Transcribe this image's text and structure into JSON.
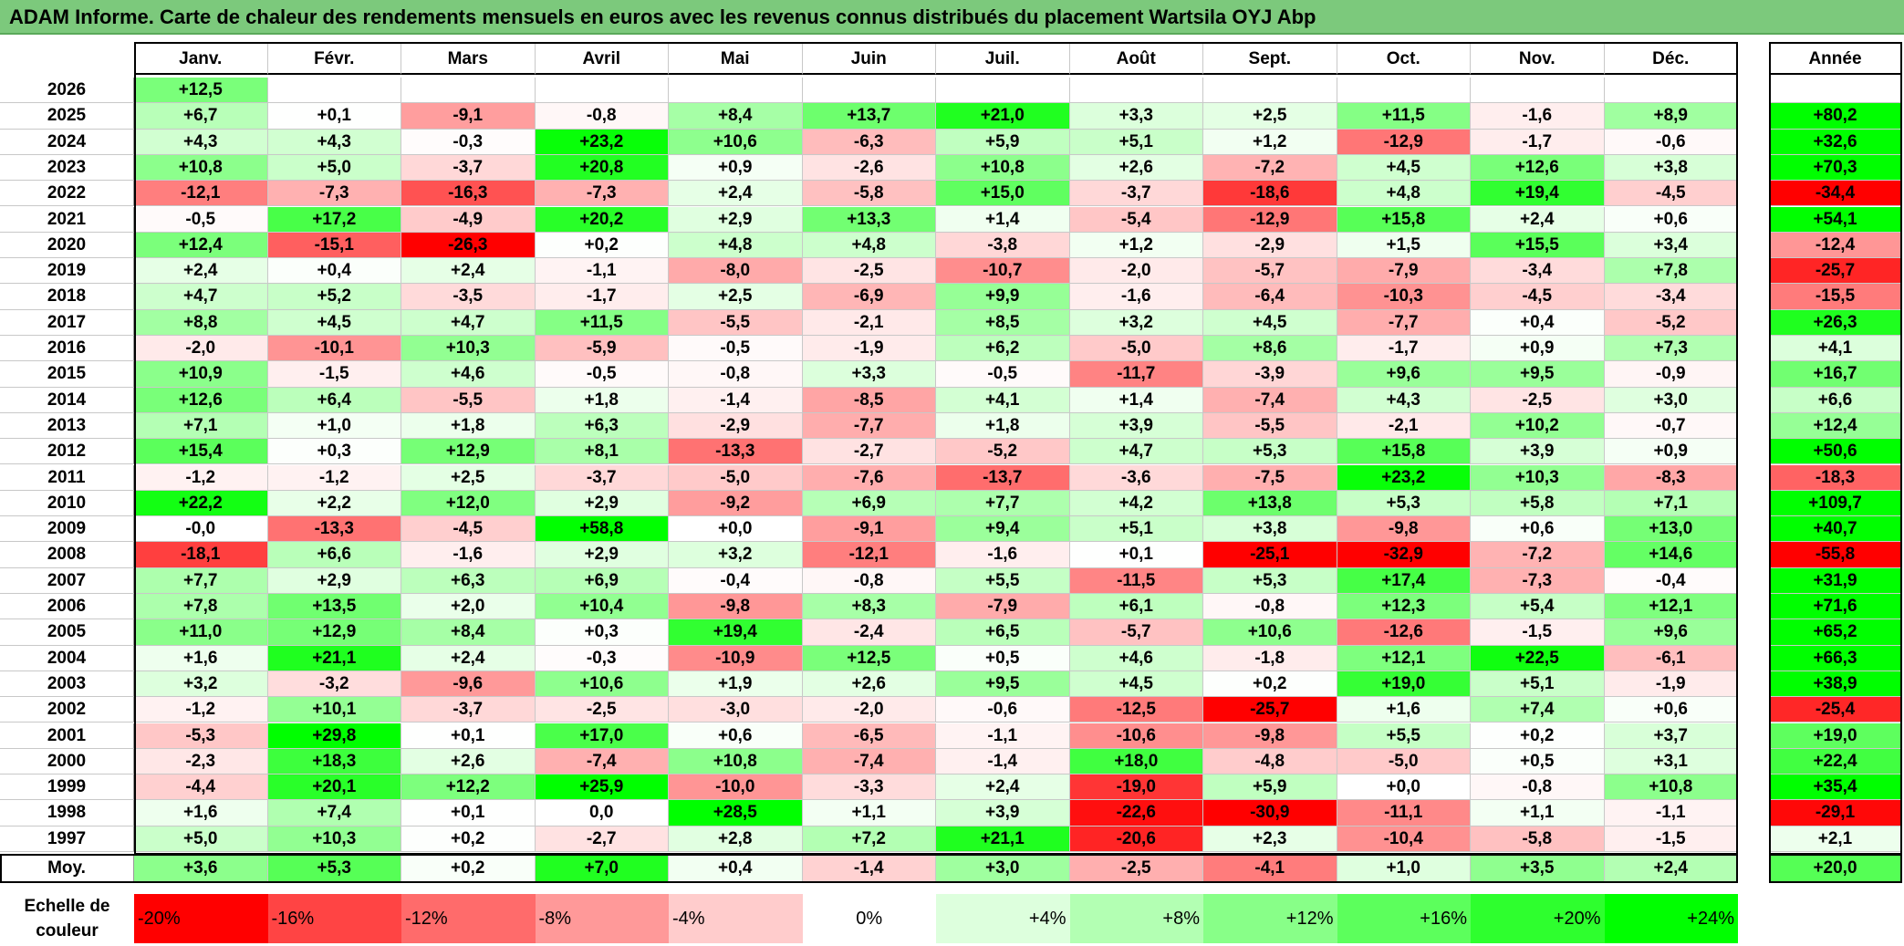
{
  "title": "ADAM Informe. Carte de chaleur des rendements mensuels en euros avec les revenus connus distribués du placement Wartsila OYJ Abp",
  "chart_data": {
    "type": "heatmap",
    "months": [
      "Janv.",
      "Févr.",
      "Mars",
      "Avril",
      "Mai",
      "Juin",
      "Juil.",
      "Août",
      "Sept.",
      "Oct.",
      "Nov.",
      "Déc."
    ],
    "annual_header": "Année",
    "rows": [
      {
        "year": "2026",
        "values": [
          "+12,5",
          "",
          "",
          "",
          "",
          "",
          "",
          "",
          "",
          "",
          "",
          ""
        ],
        "annual": ""
      },
      {
        "year": "2025",
        "values": [
          "+6,7",
          "+0,1",
          "-9,1",
          "-0,8",
          "+8,4",
          "+13,7",
          "+21,0",
          "+3,3",
          "+2,5",
          "+11,5",
          "-1,6",
          "+8,9"
        ],
        "annual": "+80,2"
      },
      {
        "year": "2024",
        "values": [
          "+4,3",
          "+4,3",
          "-0,3",
          "+23,2",
          "+10,6",
          "-6,3",
          "+5,9",
          "+5,1",
          "+1,2",
          "-12,9",
          "-1,7",
          "-0,6"
        ],
        "annual": "+32,6"
      },
      {
        "year": "2023",
        "values": [
          "+10,8",
          "+5,0",
          "-3,7",
          "+20,8",
          "+0,9",
          "-2,6",
          "+10,8",
          "+2,6",
          "-7,2",
          "+4,5",
          "+12,6",
          "+3,8"
        ],
        "annual": "+70,3"
      },
      {
        "year": "2022",
        "values": [
          "-12,1",
          "-7,3",
          "-16,3",
          "-7,3",
          "+2,4",
          "-5,8",
          "+15,0",
          "-3,7",
          "-18,6",
          "+4,8",
          "+19,4",
          "-4,5"
        ],
        "annual": "-34,4"
      },
      {
        "year": "2021",
        "values": [
          "-0,5",
          "+17,2",
          "-4,9",
          "+20,2",
          "+2,9",
          "+13,3",
          "+1,4",
          "-5,4",
          "-12,9",
          "+15,8",
          "+2,4",
          "+0,6"
        ],
        "annual": "+54,1"
      },
      {
        "year": "2020",
        "values": [
          "+12,4",
          "-15,1",
          "-26,3",
          "+0,2",
          "+4,8",
          "+4,8",
          "-3,8",
          "+1,2",
          "-2,9",
          "+1,5",
          "+15,5",
          "+3,4"
        ],
        "annual": "-12,4"
      },
      {
        "year": "2019",
        "values": [
          "+2,4",
          "+0,4",
          "+2,4",
          "-1,1",
          "-8,0",
          "-2,5",
          "-10,7",
          "-2,0",
          "-5,7",
          "-7,9",
          "-3,4",
          "+7,8"
        ],
        "annual": "-25,7"
      },
      {
        "year": "2018",
        "values": [
          "+4,7",
          "+5,2",
          "-3,5",
          "-1,7",
          "+2,5",
          "-6,9",
          "+9,9",
          "-1,6",
          "-6,4",
          "-10,3",
          "-4,5",
          "-3,4"
        ],
        "annual": "-15,5"
      },
      {
        "year": "2017",
        "values": [
          "+8,8",
          "+4,5",
          "+4,7",
          "+11,5",
          "-5,5",
          "-2,1",
          "+8,5",
          "+3,2",
          "+4,5",
          "-7,7",
          "+0,4",
          "-5,2"
        ],
        "annual": "+26,3"
      },
      {
        "year": "2016",
        "values": [
          "-2,0",
          "-10,1",
          "+10,3",
          "-5,9",
          "-0,5",
          "-1,9",
          "+6,2",
          "-5,0",
          "+8,6",
          "-1,7",
          "+0,9",
          "+7,3"
        ],
        "annual": "+4,1"
      },
      {
        "year": "2015",
        "values": [
          "+10,9",
          "-1,5",
          "+4,6",
          "-0,5",
          "-0,8",
          "+3,3",
          "-0,5",
          "-11,7",
          "-3,9",
          "+9,6",
          "+9,5",
          "-0,9"
        ],
        "annual": "+16,7"
      },
      {
        "year": "2014",
        "values": [
          "+12,6",
          "+6,4",
          "-5,5",
          "+1,8",
          "-1,4",
          "-8,5",
          "+4,1",
          "+1,4",
          "-7,4",
          "+4,3",
          "-2,5",
          "+3,0"
        ],
        "annual": "+6,6"
      },
      {
        "year": "2013",
        "values": [
          "+7,1",
          "+1,0",
          "+1,8",
          "+6,3",
          "-2,9",
          "-7,7",
          "+1,8",
          "+3,9",
          "-5,5",
          "-2,1",
          "+10,2",
          "-0,7"
        ],
        "annual": "+12,4"
      },
      {
        "year": "2012",
        "values": [
          "+15,4",
          "+0,3",
          "+12,9",
          "+8,1",
          "-13,3",
          "-2,7",
          "-5,2",
          "+4,7",
          "+5,3",
          "+15,8",
          "+3,9",
          "+0,9"
        ],
        "annual": "+50,6"
      },
      {
        "year": "2011",
        "values": [
          "-1,2",
          "-1,2",
          "+2,5",
          "-3,7",
          "-5,0",
          "-7,6",
          "-13,7",
          "-3,6",
          "-7,5",
          "+23,2",
          "+10,3",
          "-8,3"
        ],
        "annual": "-18,3"
      },
      {
        "year": "2010",
        "values": [
          "+22,2",
          "+2,2",
          "+12,0",
          "+2,9",
          "-9,2",
          "+6,9",
          "+7,7",
          "+4,2",
          "+13,8",
          "+5,3",
          "+5,8",
          "+7,1"
        ],
        "annual": "+109,7"
      },
      {
        "year": "2009",
        "values": [
          "-0,0",
          "-13,3",
          "-4,5",
          "+58,8",
          "+0,0",
          "-9,1",
          "+9,4",
          "+5,1",
          "+3,8",
          "-9,8",
          "+0,6",
          "+13,0"
        ],
        "annual": "+40,7"
      },
      {
        "year": "2008",
        "values": [
          "-18,1",
          "+6,6",
          "-1,6",
          "+2,9",
          "+3,2",
          "-12,1",
          "-1,6",
          "+0,1",
          "-25,1",
          "-32,9",
          "-7,2",
          "+14,6"
        ],
        "annual": "-55,8"
      },
      {
        "year": "2007",
        "values": [
          "+7,7",
          "+2,9",
          "+6,3",
          "+6,9",
          "-0,4",
          "-0,8",
          "+5,5",
          "-11,5",
          "+5,3",
          "+17,4",
          "-7,3",
          "-0,4"
        ],
        "annual": "+31,9"
      },
      {
        "year": "2006",
        "values": [
          "+7,8",
          "+13,5",
          "+2,0",
          "+10,4",
          "-9,8",
          "+8,3",
          "-7,9",
          "+6,1",
          "-0,8",
          "+12,3",
          "+5,4",
          "+12,1"
        ],
        "annual": "+71,6"
      },
      {
        "year": "2005",
        "values": [
          "+11,0",
          "+12,9",
          "+8,4",
          "+0,3",
          "+19,4",
          "-2,4",
          "+6,5",
          "-5,7",
          "+10,6",
          "-12,6",
          "-1,5",
          "+9,6"
        ],
        "annual": "+65,2"
      },
      {
        "year": "2004",
        "values": [
          "+1,6",
          "+21,1",
          "+2,4",
          "-0,3",
          "-10,9",
          "+12,5",
          "+0,5",
          "+4,6",
          "-1,8",
          "+12,1",
          "+22,5",
          "-6,1"
        ],
        "annual": "+66,3"
      },
      {
        "year": "2003",
        "values": [
          "+3,2",
          "-3,2",
          "-9,6",
          "+10,6",
          "+1,9",
          "+2,6",
          "+9,5",
          "+4,5",
          "+0,2",
          "+19,0",
          "+5,1",
          "-1,9"
        ],
        "annual": "+38,9"
      },
      {
        "year": "2002",
        "values": [
          "-1,2",
          "+10,1",
          "-3,7",
          "-2,5",
          "-3,0",
          "-2,0",
          "-0,6",
          "-12,5",
          "-25,7",
          "+1,6",
          "+7,4",
          "+0,6"
        ],
        "annual": "-25,4"
      },
      {
        "year": "2001",
        "values": [
          "-5,3",
          "+29,8",
          "+0,1",
          "+17,0",
          "+0,6",
          "-6,5",
          "-1,1",
          "-10,6",
          "-9,8",
          "+5,5",
          "+0,2",
          "+3,7"
        ],
        "annual": "+19,0"
      },
      {
        "year": "2000",
        "values": [
          "-2,3",
          "+18,3",
          "+2,6",
          "-7,4",
          "+10,8",
          "-7,4",
          "-1,4",
          "+18,0",
          "-4,8",
          "-5,0",
          "+0,5",
          "+3,1"
        ],
        "annual": "+22,4"
      },
      {
        "year": "1999",
        "values": [
          "-4,4",
          "+20,1",
          "+12,2",
          "+25,9",
          "-10,0",
          "-3,3",
          "+2,4",
          "-19,0",
          "+5,9",
          "+0,0",
          "-0,8",
          "+10,8"
        ],
        "annual": "+35,4"
      },
      {
        "year": "1998",
        "values": [
          "+1,6",
          "+7,4",
          "+0,1",
          "0,0",
          "+28,5",
          "+1,1",
          "+3,9",
          "-22,6",
          "-30,9",
          "-11,1",
          "+1,1",
          "-1,1"
        ],
        "annual": "-29,1"
      },
      {
        "year": "1997",
        "values": [
          "+5,0",
          "+10,3",
          "+0,2",
          "-2,7",
          "+2,8",
          "+7,2",
          "+21,1",
          "-20,6",
          "+2,3",
          "-10,4",
          "-5,8",
          "-1,5"
        ],
        "annual": "+2,1"
      }
    ],
    "average": {
      "label": "Moy.",
      "values": [
        "+3,6",
        "+5,3",
        "+0,2",
        "+7,0",
        "+0,4",
        "-1,4",
        "+3,0",
        "-2,5",
        "-4,1",
        "+1,0",
        "+3,5",
        "+2,4"
      ],
      "annual": "+20,0"
    },
    "scale": {
      "label": "Echelle de couleur",
      "items": [
        {
          "label": "-20%",
          "color": "#ff0000"
        },
        {
          "label": "-16%",
          "color": "#ff4444"
        },
        {
          "label": "-12%",
          "color": "#ff6b6b"
        },
        {
          "label": "-8%",
          "color": "#ff9999"
        },
        {
          "label": "-4%",
          "color": "#ffcccc"
        },
        {
          "label": "0%",
          "color": "#ffffff"
        },
        {
          "label": "+4%",
          "color": "#ddffdd"
        },
        {
          "label": "+8%",
          "color": "#b3ffb3"
        },
        {
          "label": "+12%",
          "color": "#88ff88"
        },
        {
          "label": "+16%",
          "color": "#5cff5c"
        },
        {
          "label": "+20%",
          "color": "#2eff2e"
        },
        {
          "label": "+24%",
          "color": "#00ff00"
        }
      ]
    }
  }
}
